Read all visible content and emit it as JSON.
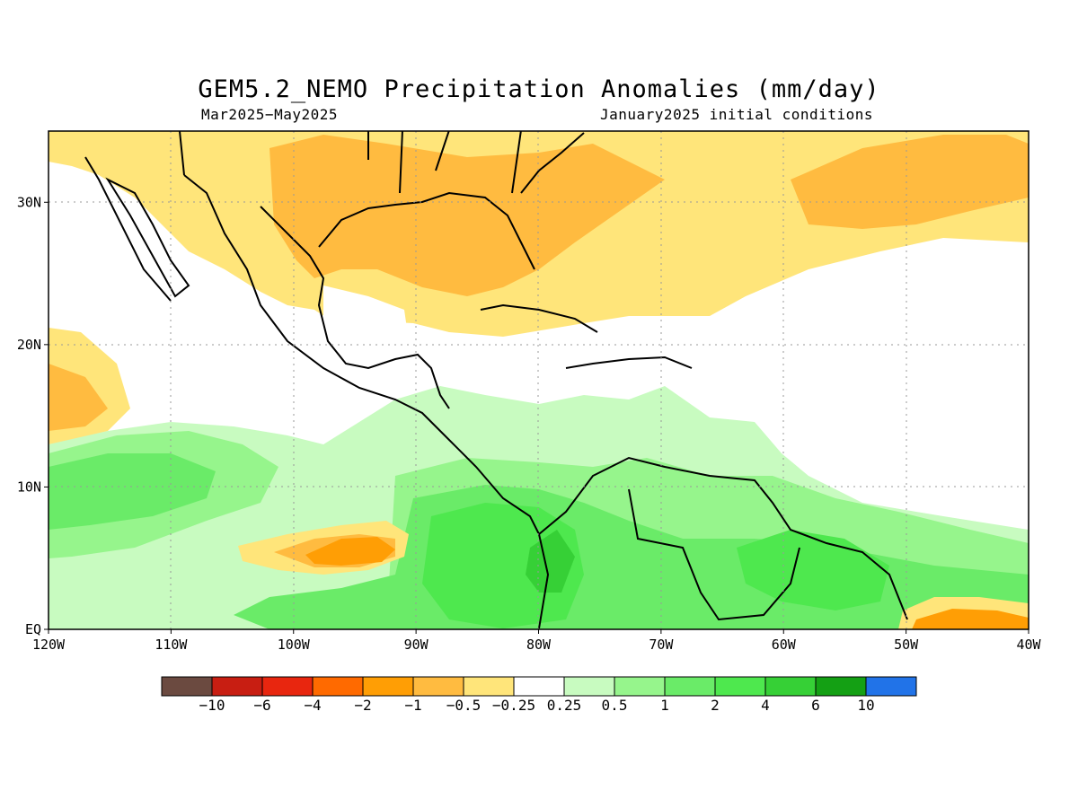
{
  "title": "GEM5.2_NEMO Precipitation Anomalies (mm/day)",
  "period": "Mar2025−May2025",
  "init": "January2025 initial conditions",
  "lon_labels": [
    "120W",
    "110W",
    "100W",
    "90W",
    "80W",
    "70W",
    "60W",
    "50W",
    "40W"
  ],
  "lat_labels": [
    "EQ",
    "10N",
    "20N",
    "30N"
  ],
  "colorbar": {
    "colors": [
      "#6b4a40",
      "#c81e12",
      "#e8260f",
      "#ff6a00",
      "#ff9e05",
      "#ffbb40",
      "#ffe57a",
      "#ffffff",
      "#c8fbc0",
      "#96f58c",
      "#6aeb68",
      "#4ee84e",
      "#36d036",
      "#14a014",
      "#2173e8"
    ],
    "labels": [
      "−10",
      "−6",
      "−4",
      "−2",
      "−1",
      "−0.5",
      "−0.25",
      "0.25",
      "0.5",
      "1",
      "2",
      "4",
      "6",
      "10"
    ]
  },
  "map": {
    "lon_range": [
      -120,
      -40
    ],
    "lat_range": [
      0,
      35
    ]
  }
}
